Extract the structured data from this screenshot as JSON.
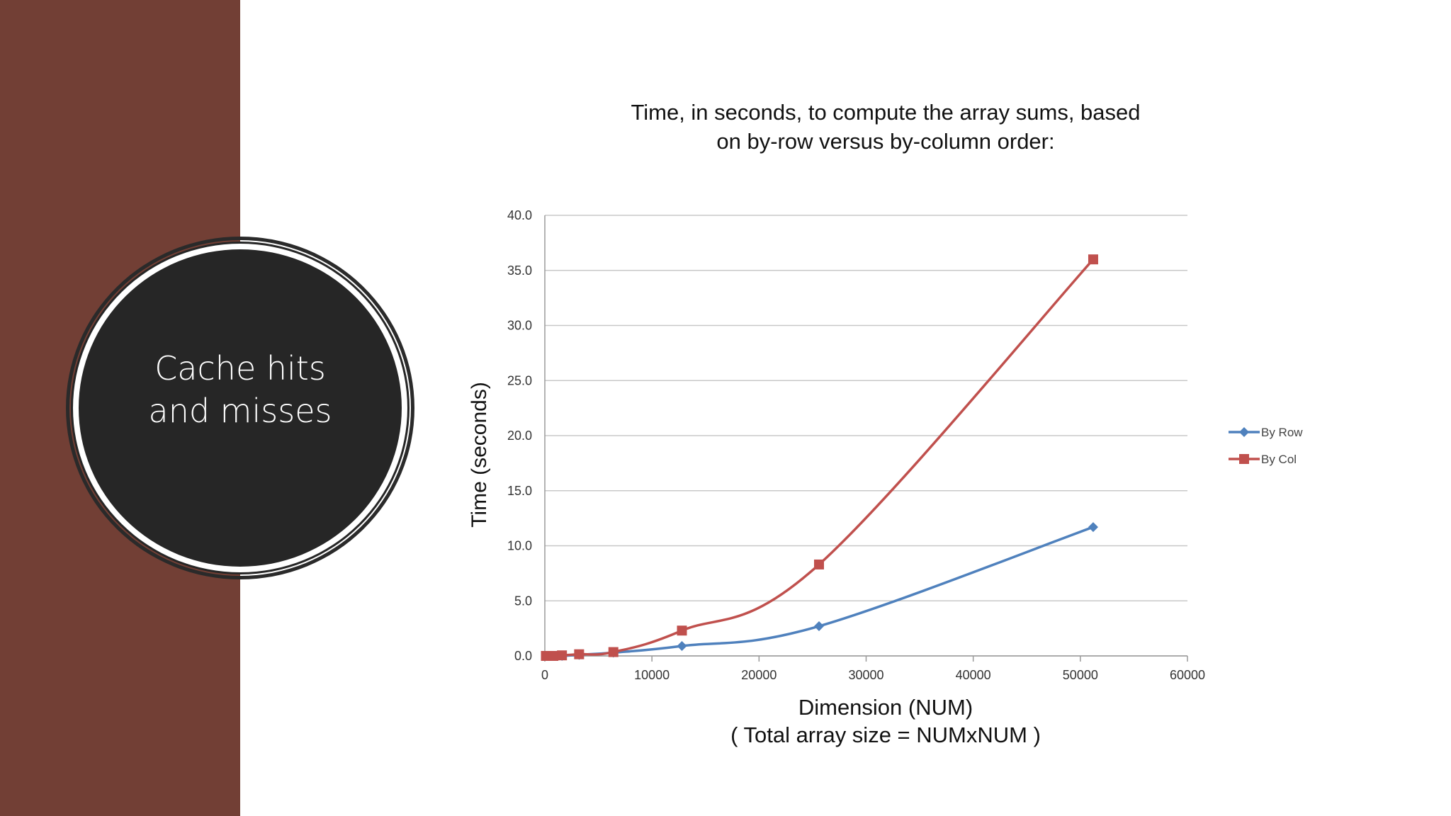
{
  "slide": {
    "title": "Cache hits and misses",
    "title_lines": [
      "Cache hits",
      "and misses"
    ],
    "panel_color": "#723f35",
    "circle_color": "#262626"
  },
  "chart_data": {
    "type": "line",
    "title": "Time, in seconds, to compute the array sums, based on by-row versus by-column order:",
    "title_lines": [
      "Time, in seconds, to compute the array sums, based",
      "on by-row versus by-column order:"
    ],
    "xlabel": "Dimension (NUM)",
    "xlabel_sub": "( Total array size = NUMxNUM )",
    "ylabel": "Time (seconds)",
    "xlim": [
      0,
      60000
    ],
    "ylim": [
      0,
      40
    ],
    "x_ticks": [
      "0",
      "10000",
      "20000",
      "30000",
      "40000",
      "50000",
      "60000"
    ],
    "y_ticks": [
      "0.0",
      "5.0",
      "10.0",
      "15.0",
      "20.0",
      "25.0",
      "30.0",
      "35.0",
      "40.0"
    ],
    "grid": true,
    "legend_position": "right",
    "series": [
      {
        "name": "By Row",
        "color": "#4f81bd",
        "marker": "diamond",
        "points": [
          [
            100,
            0.0
          ],
          [
            200,
            0.0
          ],
          [
            400,
            0.0
          ],
          [
            800,
            0.0
          ],
          [
            1600,
            0.0
          ],
          [
            3200,
            0.1
          ],
          [
            6400,
            0.3
          ],
          [
            12800,
            0.9
          ],
          [
            25600,
            2.7
          ],
          [
            51200,
            11.7
          ]
        ]
      },
      {
        "name": "By Col",
        "color": "#c0504d",
        "marker": "square",
        "points": [
          [
            100,
            0.0
          ],
          [
            200,
            0.0
          ],
          [
            400,
            0.0
          ],
          [
            800,
            0.0
          ],
          [
            1600,
            0.05
          ],
          [
            3200,
            0.15
          ],
          [
            6400,
            0.35
          ],
          [
            12800,
            2.3
          ],
          [
            25600,
            8.3
          ],
          [
            51200,
            36.0
          ]
        ]
      }
    ]
  }
}
